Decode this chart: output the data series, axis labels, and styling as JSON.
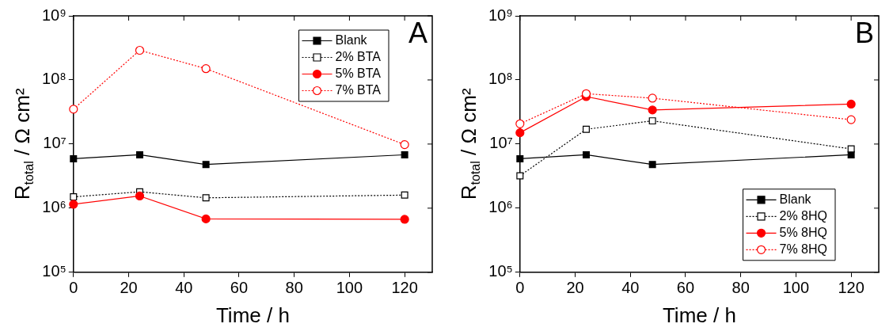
{
  "chart_data": [
    {
      "type": "line",
      "title": "A",
      "xlabel": "Time / h",
      "ylabel": "R$_{total}$ / Ω cm²",
      "x": [
        0,
        24,
        48,
        120
      ],
      "xlim": [
        0,
        130
      ],
      "xticks": [
        0,
        20,
        40,
        60,
        80,
        100,
        120
      ],
      "ylim": [
        100000,
        1000000000
      ],
      "yticks": [
        {
          "value": 100000,
          "label": "10⁵"
        },
        {
          "value": 1000000,
          "label": "10⁶"
        },
        {
          "value": 10000000,
          "label": "10⁷"
        },
        {
          "value": 100000000,
          "label": "10⁸"
        },
        {
          "value": 1000000000,
          "label": "10⁹"
        }
      ],
      "log": "y",
      "grid": false,
      "legend": "top right",
      "series": [
        {
          "name": "Blank",
          "color": "#000000",
          "marker": "square",
          "line_style": "solid",
          "values": [
            5900000,
            6800000,
            4800000,
            6800000
          ]
        },
        {
          "name": "2% BTA",
          "color": "#000000",
          "marker": "square",
          "line_style": "dotted",
          "values": [
            1500000,
            1800000,
            1450000,
            1600000
          ]
        },
        {
          "name": "5% BTA",
          "color": "#ff0000",
          "marker": "circle",
          "line_style": "solid",
          "values": [
            1150000,
            1550000,
            680000,
            670000
          ]
        },
        {
          "name": "7% BTA",
          "color": "#ff0000",
          "marker": "circle",
          "line_style": "dotted",
          "values": [
            35000000,
            290000000,
            150000000,
            9800000
          ]
        }
      ]
    },
    {
      "type": "line",
      "title": "B",
      "xlabel": "Time / h",
      "ylabel": "R$_{total}$ / Ω cm²",
      "x": [
        0,
        24,
        48,
        120
      ],
      "xlim": [
        0,
        130
      ],
      "xticks": [
        0,
        20,
        40,
        60,
        80,
        100,
        120
      ],
      "ylim": [
        100000,
        1000000000
      ],
      "yticks": [
        {
          "value": 100000,
          "label": "10⁵"
        },
        {
          "value": 1000000,
          "label": "10⁶"
        },
        {
          "value": 10000000,
          "label": "10⁷"
        },
        {
          "value": 100000000,
          "label": "10⁸"
        },
        {
          "value": 1000000000,
          "label": "10⁹"
        }
      ],
      "log": "y",
      "grid": false,
      "legend": "bottom right",
      "series": [
        {
          "name": "Blank",
          "color": "#000000",
          "marker": "square",
          "line_style": "solid",
          "values": [
            5900000,
            6800000,
            4800000,
            6800000
          ]
        },
        {
          "name": "2% 8HQ",
          "color": "#000000",
          "marker": "square",
          "line_style": "dotted",
          "values": [
            3200000,
            17000000,
            23000000,
            8400000
          ]
        },
        {
          "name": "5% 8HQ",
          "color": "#ff0000",
          "marker": "circle",
          "line_style": "solid",
          "values": [
            15000000,
            55000000,
            34000000,
            42000000
          ]
        },
        {
          "name": "7% 8HQ",
          "color": "#ff0000",
          "marker": "circle",
          "line_style": "dotted",
          "values": [
            20700000,
            61000000,
            52000000,
            24000000
          ]
        }
      ]
    }
  ]
}
